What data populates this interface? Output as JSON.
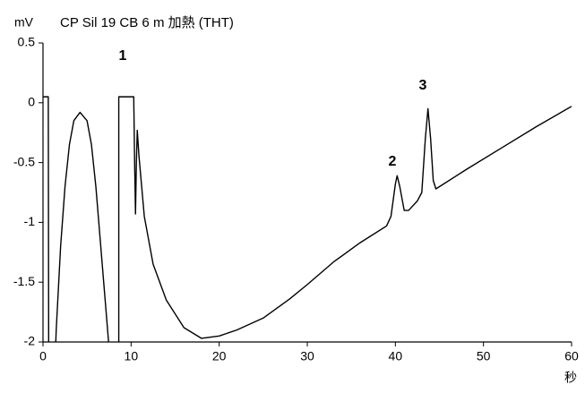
{
  "chart_data": {
    "type": "line",
    "title": "CP Sil 19 CB 6 m 加熱 (THT)",
    "y_label": "mV",
    "x_label": "秒",
    "xlim": [
      0,
      60
    ],
    "xticks": [
      0,
      10,
      20,
      30,
      40,
      50,
      60
    ],
    "ylim": [
      -2,
      0.5
    ],
    "yticks": [
      0.5,
      0,
      -0.5,
      -1,
      -1.5,
      -2
    ],
    "annotations": [
      "1",
      "2",
      "3"
    ],
    "series": [
      {
        "color": "#000000",
        "x": [
          0,
          0.6,
          0.65,
          1.3,
          1.5,
          2,
          2.5,
          3,
          3.5,
          4.2,
          5,
          5.5,
          6,
          6.5,
          7,
          7.5,
          7.8,
          8.6,
          8.6,
          10.3,
          10.4,
          10.5,
          10.6,
          10.7,
          10.9,
          11.5,
          12.5,
          14,
          16,
          18,
          20,
          22,
          25,
          28,
          30,
          33,
          36,
          39,
          39.5,
          40,
          40.2,
          40.5,
          41,
          41.5,
          42.5,
          43,
          43.4,
          43.7,
          44,
          44.3,
          44.6,
          48,
          52,
          56,
          60
        ],
        "values": [
          0.05,
          0.05,
          -2.3,
          -2.3,
          -1.9,
          -1.2,
          -0.7,
          -0.35,
          -0.15,
          -0.08,
          -0.15,
          -0.35,
          -0.7,
          -1.15,
          -1.6,
          -2.05,
          -2.3,
          -2.3,
          0.05,
          0.05,
          -0.5,
          -0.93,
          -0.5,
          -0.23,
          -0.45,
          -0.95,
          -1.35,
          -1.65,
          -1.88,
          -1.97,
          -1.95,
          -1.9,
          -1.8,
          -1.64,
          -1.52,
          -1.33,
          -1.17,
          -1.03,
          -0.95,
          -0.68,
          -0.61,
          -0.7,
          -0.9,
          -0.9,
          -0.82,
          -0.75,
          -0.3,
          -0.05,
          -0.3,
          -0.65,
          -0.72,
          -0.56,
          -0.38,
          -0.2,
          -0.03
        ]
      }
    ]
  }
}
